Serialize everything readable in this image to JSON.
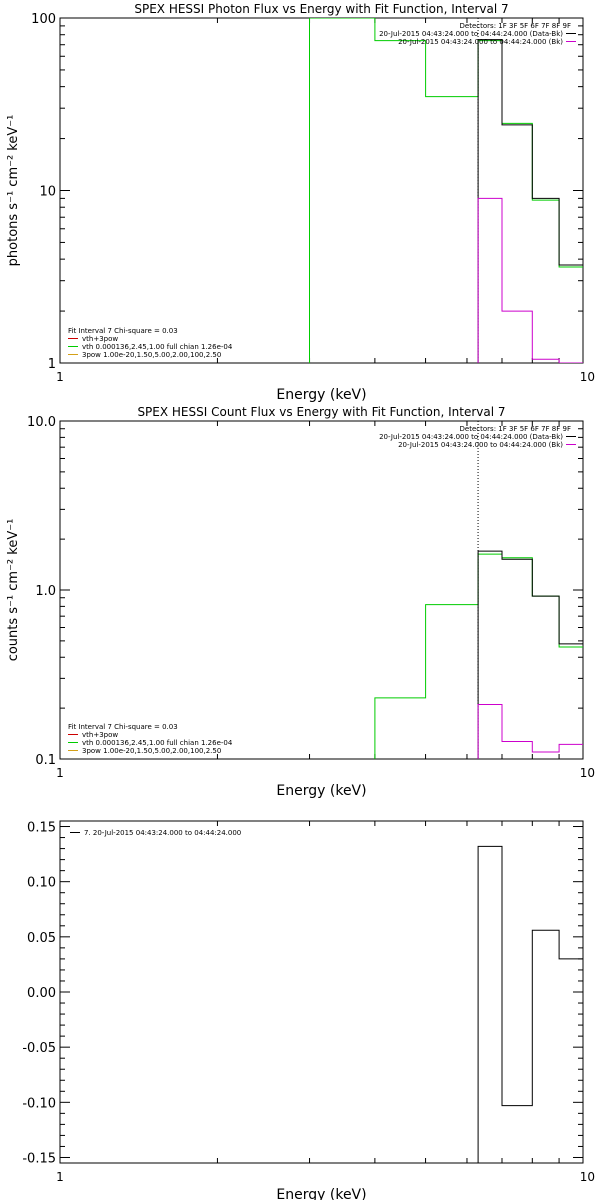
{
  "chart_data": [
    {
      "type": "line",
      "title": "SPEX HESSI Photon Flux vs Energy with Fit Function, Interval 7",
      "xlabel": "Energy (keV)",
      "ylabel": "photons s⁻¹ cm⁻² keV⁻¹",
      "xscale": "log",
      "yscale": "log",
      "xlim": [
        1,
        10
      ],
      "ylim": [
        1,
        100
      ],
      "x_ticks": [
        {
          "value": 1,
          "label": "1"
        },
        {
          "value": 10,
          "label": "10"
        }
      ],
      "y_ticks": [
        {
          "value": 1,
          "label": "1"
        },
        {
          "value": 10,
          "label": "10"
        },
        {
          "value": 100,
          "label": "100"
        }
      ],
      "legend_top": {
        "position": "top-right",
        "header": "Detectors: 1F 3F 5F 6F 7F 8F 9F",
        "entries": [
          {
            "label": "20-Jul-2015 04:43:24.000 to 04:44:24.000 (Data-Bk)",
            "color": "#000000"
          },
          {
            "label": "20-Jul-2015 04:43:24.000 to 04:44:24.000 (Bk)",
            "color": "#cc00cc"
          }
        ]
      },
      "legend_bottom": {
        "position": "bottom-left",
        "header": "Fit Interval  7   Chi-square = 0.03",
        "entries": [
          {
            "label": "vth+3pow",
            "color": "#cc0000"
          },
          {
            "label": "vth 0.000136,2.45,1.00  full chian 1.26e-04",
            "color": "#00cc00"
          },
          {
            "label": "3pow 1.00e-20,1.50,5.00,2.00,100,2.50",
            "color": "#d4a017"
          }
        ]
      },
      "vline_x": 6.3,
      "series": [
        {
          "role": "data",
          "color": "#000000",
          "edges": [
            6.3,
            7.0,
            8.0,
            9.0,
            10.0
          ],
          "values": [
            75,
            24,
            9,
            3.7
          ]
        },
        {
          "role": "fit",
          "color": "#00cc00",
          "edges": [
            3.0,
            4.0,
            5.0,
            6.3,
            7.0,
            8.0,
            9.0,
            10.0
          ],
          "values": [
            120,
            74,
            35,
            74,
            24.5,
            8.8,
            3.6
          ]
        },
        {
          "role": "background",
          "color": "#cc00cc",
          "edges": [
            6.3,
            7.0,
            8.0,
            9.0,
            10.0
          ],
          "values": [
            9,
            2,
            1.05,
            0.98
          ]
        }
      ]
    },
    {
      "type": "line",
      "title": "SPEX HESSI Count Flux vs Energy with Fit Function, Interval 7",
      "xlabel": "Energy (keV)",
      "ylabel": "counts s⁻¹ cm⁻² keV⁻¹",
      "xscale": "log",
      "yscale": "log",
      "xlim": [
        1,
        10
      ],
      "ylim": [
        0.1,
        10
      ],
      "x_ticks": [
        {
          "value": 1,
          "label": "1"
        },
        {
          "value": 10,
          "label": "10"
        }
      ],
      "y_ticks": [
        {
          "value": 0.1,
          "label": "0.1"
        },
        {
          "value": 1,
          "label": "1.0"
        },
        {
          "value": 10,
          "label": "10.0"
        }
      ],
      "legend_top": {
        "position": "top-right",
        "header": "Detectors: 1F 3F 5F 6F 7F 8F 9F",
        "entries": [
          {
            "label": "20-Jul-2015 04:43:24.000 to 04:44:24.000 (Data-Bk)",
            "color": "#000000"
          },
          {
            "label": "20-Jul-2015 04:43:24.000 to 04:44:24.000 (Bk)",
            "color": "#cc00cc"
          }
        ]
      },
      "legend_bottom": {
        "position": "bottom-left",
        "header": "Fit Interval  7   Chi-square = 0.03",
        "entries": [
          {
            "label": "vth+3pow",
            "color": "#cc0000"
          },
          {
            "label": "vth 0.000136,2.45,1.00  full chian 1.26e-04",
            "color": "#00cc00"
          },
          {
            "label": "3pow 1.00e-20,1.50,5.00,2.00,100,2.50",
            "color": "#d4a017"
          }
        ]
      },
      "vline_x": 6.3,
      "series": [
        {
          "role": "data",
          "color": "#000000",
          "edges": [
            6.3,
            7.0,
            8.0,
            9.0,
            10.0
          ],
          "values": [
            1.7,
            1.52,
            0.92,
            0.48
          ]
        },
        {
          "role": "fit",
          "color": "#00cc00",
          "edges": [
            4.0,
            5.0,
            6.3,
            7.0,
            8.0,
            9.0,
            10.0
          ],
          "values": [
            0.23,
            0.82,
            1.63,
            1.55,
            0.92,
            0.46
          ]
        },
        {
          "role": "background",
          "color": "#cc00cc",
          "edges": [
            6.3,
            7.0,
            8.0,
            9.0,
            10.0
          ],
          "values": [
            0.21,
            0.127,
            0.11,
            0.122
          ]
        }
      ]
    },
    {
      "type": "line",
      "title": "",
      "xlabel": "Energy (keV)",
      "ylabel": "",
      "xscale": "log",
      "yscale": "linear",
      "xlim": [
        1,
        10
      ],
      "ylim": [
        -0.155,
        0.155
      ],
      "x_ticks": [
        {
          "value": 1,
          "label": "1"
        },
        {
          "value": 10,
          "label": "10"
        }
      ],
      "y_ticks": [
        {
          "value": 0.15,
          "label": "0.15"
        },
        {
          "value": 0.1,
          "label": "0.10"
        },
        {
          "value": 0.05,
          "label": "0.05"
        },
        {
          "value": 0.0,
          "label": "0.00"
        },
        {
          "value": -0.05,
          "label": "-0.05"
        },
        {
          "value": -0.1,
          "label": "-0.10"
        },
        {
          "value": -0.15,
          "label": "-0.15"
        }
      ],
      "legend_top": {
        "position": "top-left",
        "header": "",
        "entries": [
          {
            "label": "7. 20-Jul-2015 04:43:24.000 to 04:44:24.000",
            "color": "#000000"
          }
        ]
      },
      "series": [
        {
          "role": "residual",
          "color": "#000000",
          "edges": [
            6.3,
            7.0,
            8.0,
            9.0,
            10.0
          ],
          "values": [
            0.132,
            -0.103,
            0.056,
            0.03
          ]
        }
      ]
    }
  ]
}
